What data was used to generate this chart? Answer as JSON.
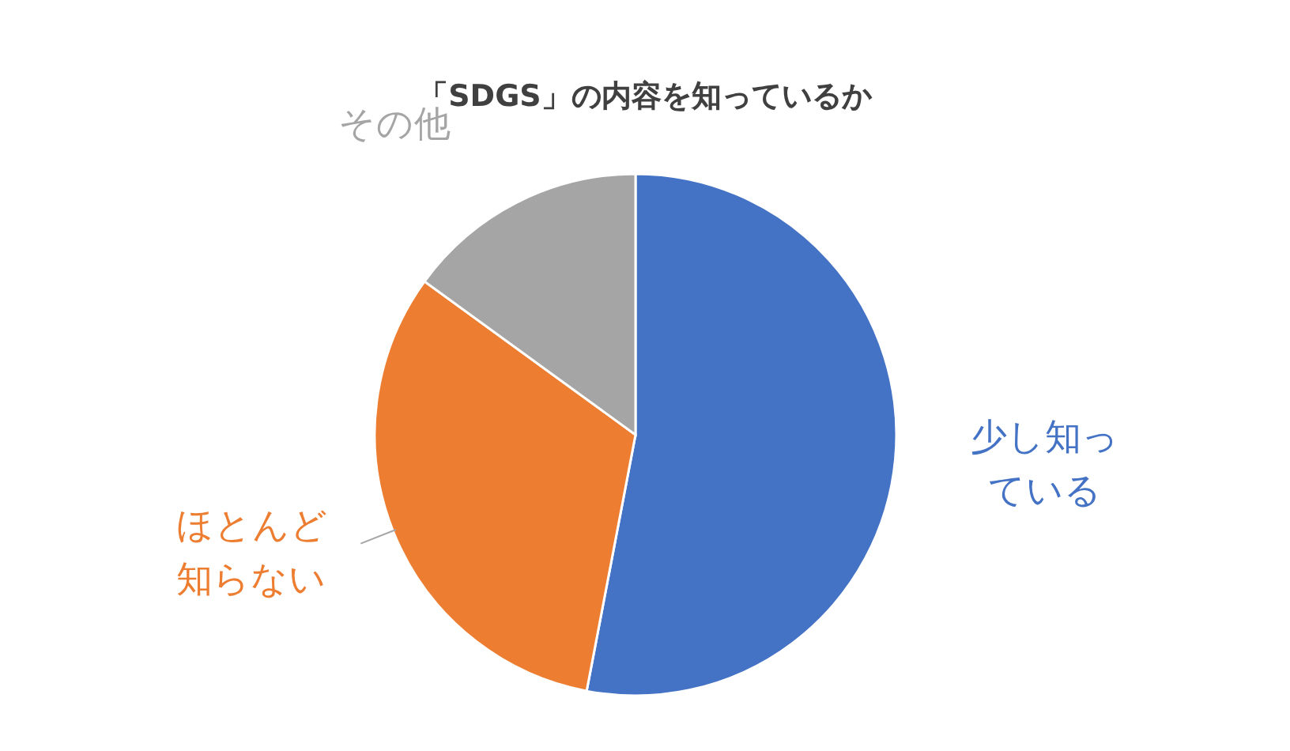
{
  "chart_data": {
    "type": "pie",
    "title": "「SDGS」の内容を知っているか",
    "categories": [
      "少し知っている",
      "ほとんど知らない",
      "その他"
    ],
    "values": [
      53,
      32,
      15
    ],
    "colors": [
      "#4472c4",
      "#ed7d31",
      "#a5a5a5"
    ]
  }
}
